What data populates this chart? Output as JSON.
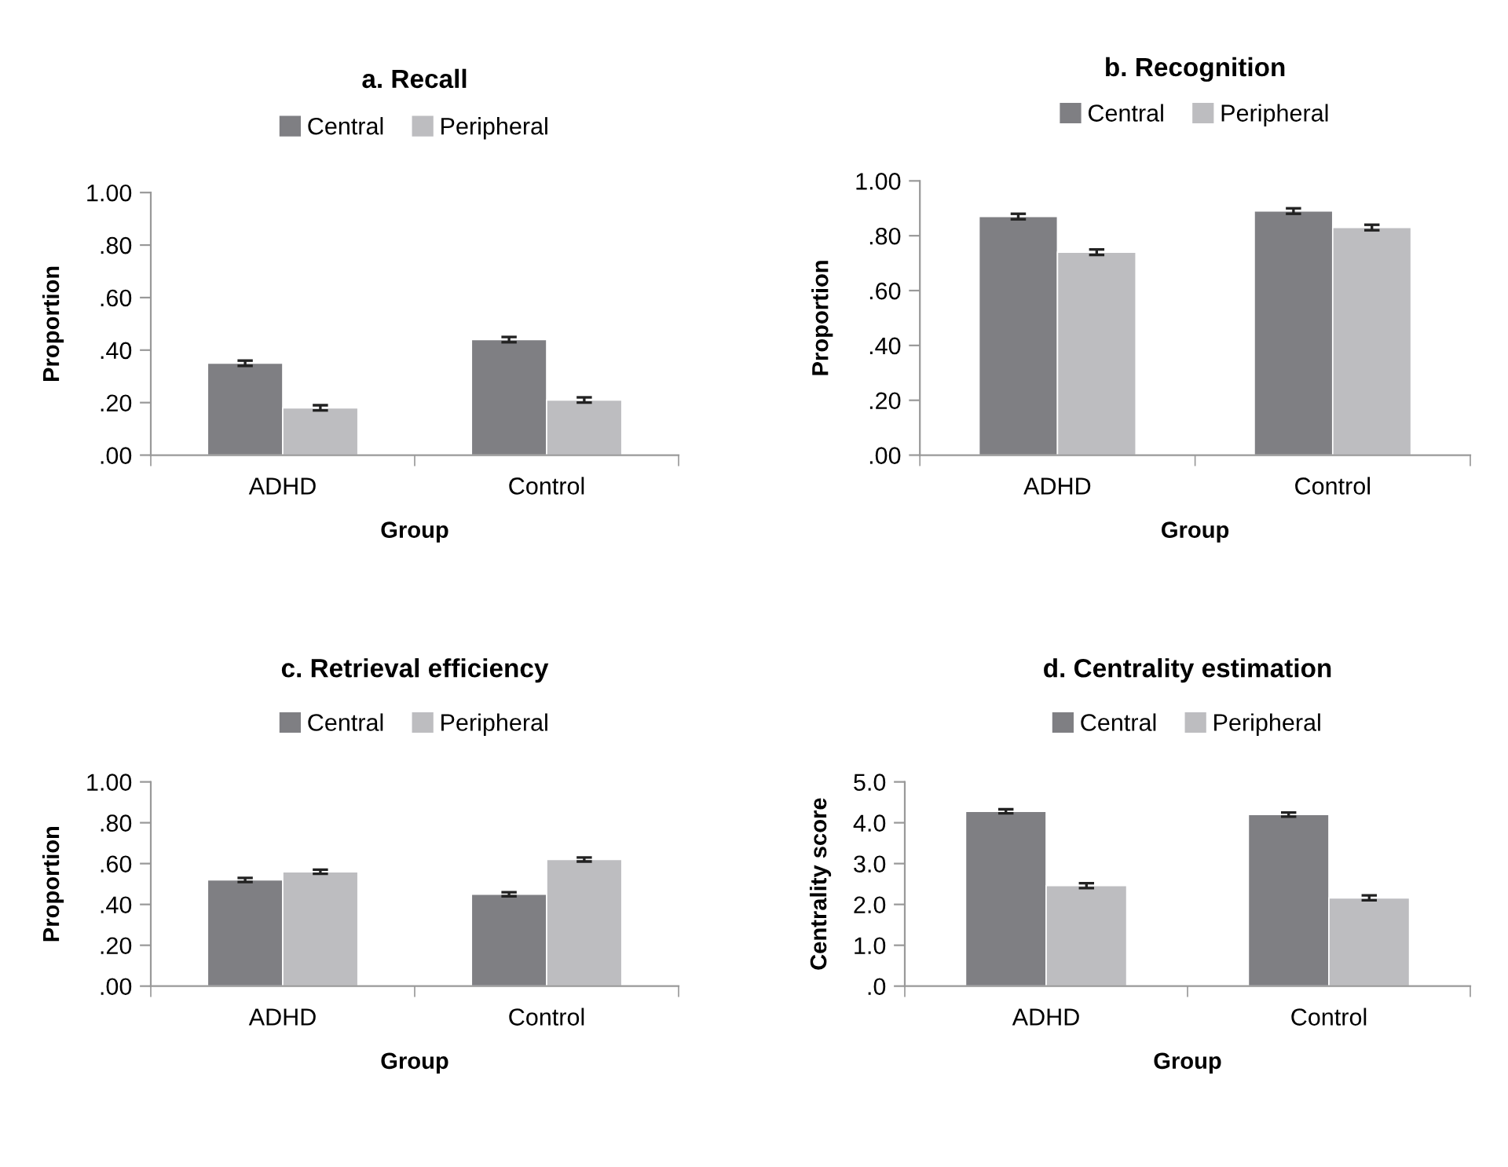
{
  "chart_data": [
    {
      "type": "bar",
      "title": "a. Recall",
      "xlabel": "Group",
      "ylabel": "Proportion",
      "categories": [
        "ADHD",
        "Control"
      ],
      "legend": "top",
      "ylim": [
        0,
        1
      ],
      "yticks": [
        {
          "value": 0,
          "label": ".00"
        },
        {
          "value": 0.2,
          "label": ".20"
        },
        {
          "value": 0.4,
          "label": ".40"
        },
        {
          "value": 0.6,
          "label": ".60"
        },
        {
          "value": 0.8,
          "label": ".80"
        },
        {
          "value": 1,
          "label": "1.00"
        }
      ],
      "series": [
        {
          "name": "Central",
          "color": "#7f7f83",
          "values": [
            0.35,
            0.44
          ],
          "errors": [
            0.01,
            0.01
          ]
        },
        {
          "name": "Peripheral",
          "color": "#bdbdc0",
          "values": [
            0.18,
            0.21
          ],
          "errors": [
            0.01,
            0.01
          ]
        }
      ]
    },
    {
      "type": "bar",
      "title": "b. Recognition",
      "xlabel": "Group",
      "ylabel": "Proportion",
      "categories": [
        "ADHD",
        "Control"
      ],
      "legend": "top",
      "ylim": [
        0,
        1
      ],
      "yticks": [
        {
          "value": 0,
          "label": ".00"
        },
        {
          "value": 0.2,
          "label": ".20"
        },
        {
          "value": 0.4,
          "label": ".40"
        },
        {
          "value": 0.6,
          "label": ".60"
        },
        {
          "value": 0.8,
          "label": ".80"
        },
        {
          "value": 1,
          "label": "1.00"
        }
      ],
      "series": [
        {
          "name": "Central",
          "color": "#7f7f83",
          "values": [
            0.87,
            0.89
          ],
          "errors": [
            0.01,
            0.01
          ]
        },
        {
          "name": "Peripheral",
          "color": "#bdbdc0",
          "values": [
            0.74,
            0.83
          ],
          "errors": [
            0.01,
            0.01
          ]
        }
      ]
    },
    {
      "type": "bar",
      "title": "c. Retrieval efficiency",
      "xlabel": "Group",
      "ylabel": "Proportion",
      "categories": [
        "ADHD",
        "Control"
      ],
      "legend": "top",
      "ylim": [
        0,
        1
      ],
      "yticks": [
        {
          "value": 0,
          "label": ".00"
        },
        {
          "value": 0.2,
          "label": ".20"
        },
        {
          "value": 0.4,
          "label": ".40"
        },
        {
          "value": 0.6,
          "label": ".60"
        },
        {
          "value": 0.8,
          "label": ".80"
        },
        {
          "value": 1,
          "label": "1.00"
        }
      ],
      "series": [
        {
          "name": "Central",
          "color": "#7f7f83",
          "values": [
            0.52,
            0.45
          ],
          "errors": [
            0.01,
            0.01
          ]
        },
        {
          "name": "Peripheral",
          "color": "#bdbdc0",
          "values": [
            0.56,
            0.62
          ],
          "errors": [
            0.01,
            0.01
          ]
        }
      ]
    },
    {
      "type": "bar",
      "title": "d. Centrality estimation",
      "xlabel": "Group",
      "ylabel": "Centrality score",
      "categories": [
        "ADHD",
        "Control"
      ],
      "legend": "top",
      "ylim": [
        0,
        5
      ],
      "yticks": [
        {
          "value": 0,
          "label": ".0"
        },
        {
          "value": 1,
          "label": "1.0"
        },
        {
          "value": 2,
          "label": "2.0"
        },
        {
          "value": 3,
          "label": "3.0"
        },
        {
          "value": 4,
          "label": "4.0"
        },
        {
          "value": 5,
          "label": "5.0"
        }
      ],
      "series": [
        {
          "name": "Central",
          "color": "#7f7f83",
          "values": [
            4.28,
            4.2
          ],
          "errors": [
            0.05,
            0.05
          ]
        },
        {
          "name": "Peripheral",
          "color": "#bdbdc0",
          "values": [
            2.46,
            2.16
          ],
          "errors": [
            0.06,
            0.06
          ]
        }
      ]
    }
  ]
}
